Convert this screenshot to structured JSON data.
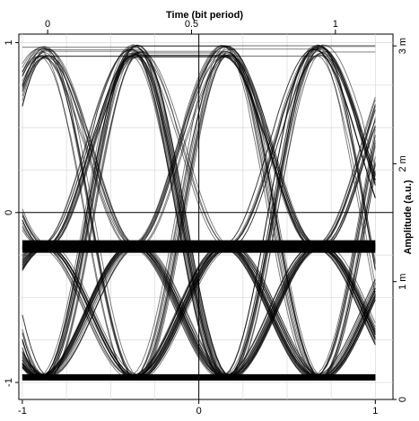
{
  "chart_data": {
    "type": "line",
    "title": "",
    "top_axis": {
      "label": "Time (bit period)",
      "range": [
        -0.1,
        1.2
      ],
      "ticks": [
        {
          "value": 0,
          "label": "0"
        },
        {
          "value": 0.5,
          "label": "0.5"
        },
        {
          "value": 1,
          "label": "1"
        }
      ]
    },
    "bottom_axis": {
      "label": "",
      "range": [
        -1.02,
        1.1
      ],
      "ticks": [
        {
          "value": -1,
          "label": "-1"
        },
        {
          "value": 0,
          "label": "0"
        },
        {
          "value": 1,
          "label": "1"
        }
      ]
    },
    "left_axis": {
      "label": "",
      "range": [
        -1.1,
        1.05
      ],
      "ticks": [
        {
          "value": -1,
          "label": "-1"
        },
        {
          "value": 0,
          "label": "0"
        },
        {
          "value": 1,
          "label": "1"
        }
      ]
    },
    "right_axis": {
      "label": "Amplitude (a.u.)",
      "range": [
        0,
        0.0031
      ],
      "ticks": [
        {
          "value": 0,
          "label": "0"
        },
        {
          "value": 0.001,
          "label": "1 m"
        },
        {
          "value": 0.002,
          "label": "2 m"
        },
        {
          "value": 0.003,
          "label": "3 m"
        }
      ]
    },
    "grid": true,
    "legend": "none",
    "trace_color": "#000000",
    "eye_pattern": {
      "description_levels": [
        -1,
        -0.2,
        0.95
      ],
      "eye_crossings_time": [
        0.05,
        0.35,
        0.65,
        0.95
      ],
      "peak_time": [
        0.12,
        0.88
      ],
      "peak_amplitude": 0.95,
      "bottom_rail": -0.97,
      "middle_band": -0.2
    }
  }
}
